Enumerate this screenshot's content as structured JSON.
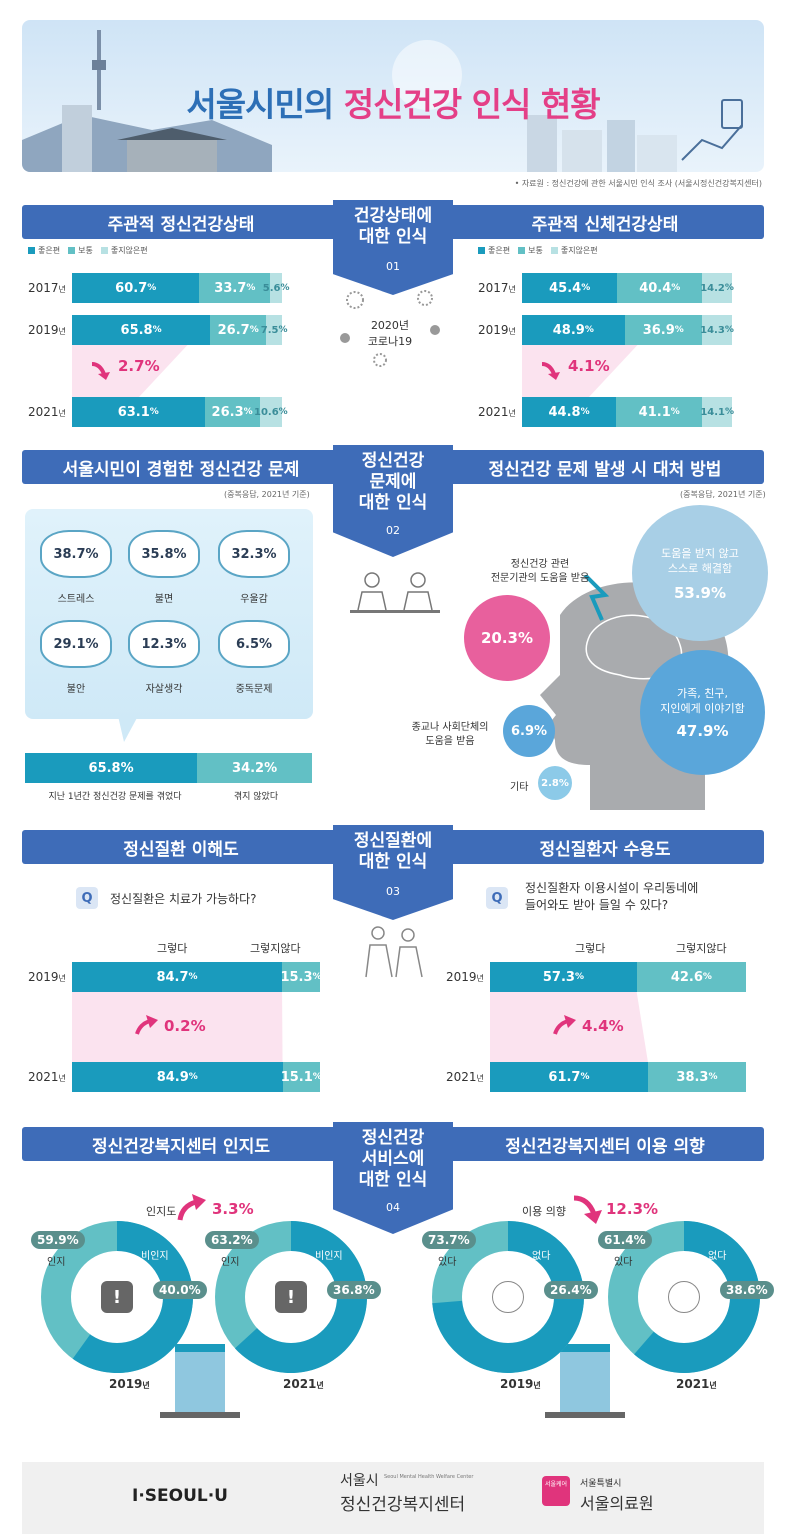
{
  "hero": {
    "title_a": "서울시민의 ",
    "title_b": "정신건강 인식 현황"
  },
  "source": "• 자료원 : 정신건강에 관한 서울시민 인식 조사 (서울시정신건강복지센터)",
  "colors": {
    "blue": "#3e6cb8",
    "teal": "#1a9bbd",
    "teal2": "#62c0c5",
    "light": "#b7e1e3",
    "pink": "#e0347c"
  },
  "s1": {
    "left_title": "주관적 정신건강상태",
    "right_title": "주관적 신체건강상태",
    "tag": [
      "건강상태에",
      "대한 인식"
    ],
    "num": "01",
    "covid": [
      "2020년",
      "코로나19"
    ],
    "legend": [
      "좋은편",
      "보통",
      "좋지않은편"
    ],
    "years": [
      "2017",
      "2019",
      "2021"
    ],
    "yr_suffix": "년",
    "left_rows": [
      [
        "60.7",
        "33.7",
        "5.6"
      ],
      [
        "65.8",
        "26.7",
        "7.5"
      ],
      [
        "63.1",
        "26.3",
        "10.6"
      ]
    ],
    "left_delta": "2.7%",
    "right_rows": [
      [
        "45.4",
        "40.4",
        "14.2"
      ],
      [
        "48.9",
        "36.9",
        "14.3"
      ],
      [
        "44.8",
        "41.1",
        "14.1"
      ]
    ],
    "right_delta": "4.1%"
  },
  "s2": {
    "left_title": "서울시민이 경험한 정신건강 문제",
    "right_title": "정신건강 문제 발생 시 대처 방법",
    "tag": [
      "정신건강",
      "문제에",
      "대한 인식"
    ],
    "num": "02",
    "note": "(중복응답, 2021년 기준)",
    "problems": [
      [
        "38.7%",
        "스트레스"
      ],
      [
        "35.8%",
        "불면"
      ],
      [
        "32.3%",
        "우울감"
      ],
      [
        "29.1%",
        "불안"
      ],
      [
        "12.3%",
        "자살생각"
      ],
      [
        "6.5%",
        "중독문제"
      ]
    ],
    "exp": {
      "yes": "65.8%",
      "no": "34.2%",
      "yes_lbl": "지난 1년간 정신건강 문제를 겪었다",
      "no_lbl": "겪지 않았다"
    },
    "cope": {
      "expert_lbl": [
        "정신건강 관련",
        "전문기관의 도움을 받음"
      ],
      "expert": "20.3%",
      "self_lbl": [
        "도움을 받지 않고",
        "스스로 해결함"
      ],
      "self": "53.9%",
      "family_lbl": [
        "가족, 친구,",
        "지인에게 이야기함"
      ],
      "family": "47.9%",
      "religion_lbl": [
        "종교나 사회단체의",
        "도움을 받음"
      ],
      "religion": "6.9%",
      "etc_lbl": "기타",
      "etc": "2.8%"
    }
  },
  "s3": {
    "left_title": "정신질환 이해도",
    "right_title": "정신질환자 수용도",
    "tag": [
      "정신질환에",
      "대한 인식"
    ],
    "num": "03",
    "q_left": "정신질환은 치료가 가능하다?",
    "q_right": [
      "정신질환자 이용시설이 우리동네에",
      "들어와도 받아 들일 수 있다?"
    ],
    "yes": "그렇다",
    "no": "그렇지않다",
    "years": [
      "2019",
      "2021"
    ],
    "left_rows": [
      [
        "84.7",
        "15.3"
      ],
      [
        "84.9",
        "15.1"
      ]
    ],
    "left_delta": "0.2%",
    "right_rows": [
      [
        "57.3",
        "42.6"
      ],
      [
        "61.7",
        "38.3"
      ]
    ],
    "right_delta": "4.4%"
  },
  "s4": {
    "left_title": "정신건강복지센터 인지도",
    "right_title": "정신건강복지센터 이용 의향",
    "tag": [
      "정신건강",
      "서비스에",
      "대한 인식"
    ],
    "num": "04",
    "left_delta_lbl": "인지도",
    "left_delta": "3.3%",
    "right_delta_lbl": "이용 의향",
    "right_delta": "12.3%",
    "donuts": [
      {
        "year": "2019",
        "a": "59.9%",
        "a_lbl": "인지",
        "b": "40.0%",
        "b_lbl": "비인지",
        "pct": 59.9
      },
      {
        "year": "2021",
        "a": "63.2%",
        "a_lbl": "인지",
        "b": "36.8%",
        "b_lbl": "비인지",
        "pct": 63.2
      },
      {
        "year": "2019",
        "a": "73.7%",
        "a_lbl": "있다",
        "b": "26.4%",
        "b_lbl": "없다",
        "pct": 73.7
      },
      {
        "year": "2021",
        "a": "61.4%",
        "a_lbl": "있다",
        "b": "38.6%",
        "b_lbl": "없다",
        "pct": 61.4
      }
    ]
  },
  "footer": {
    "seoul": "I·SEOUL·U",
    "center_a": "서울시",
    "center_b": "정신건강복지센터",
    "center_en": "Seoul Mental Health Welfare Center",
    "hosp_a": "서울특별시",
    "hosp_b": "서울의료원",
    "hosp_badge": "서울케어"
  }
}
